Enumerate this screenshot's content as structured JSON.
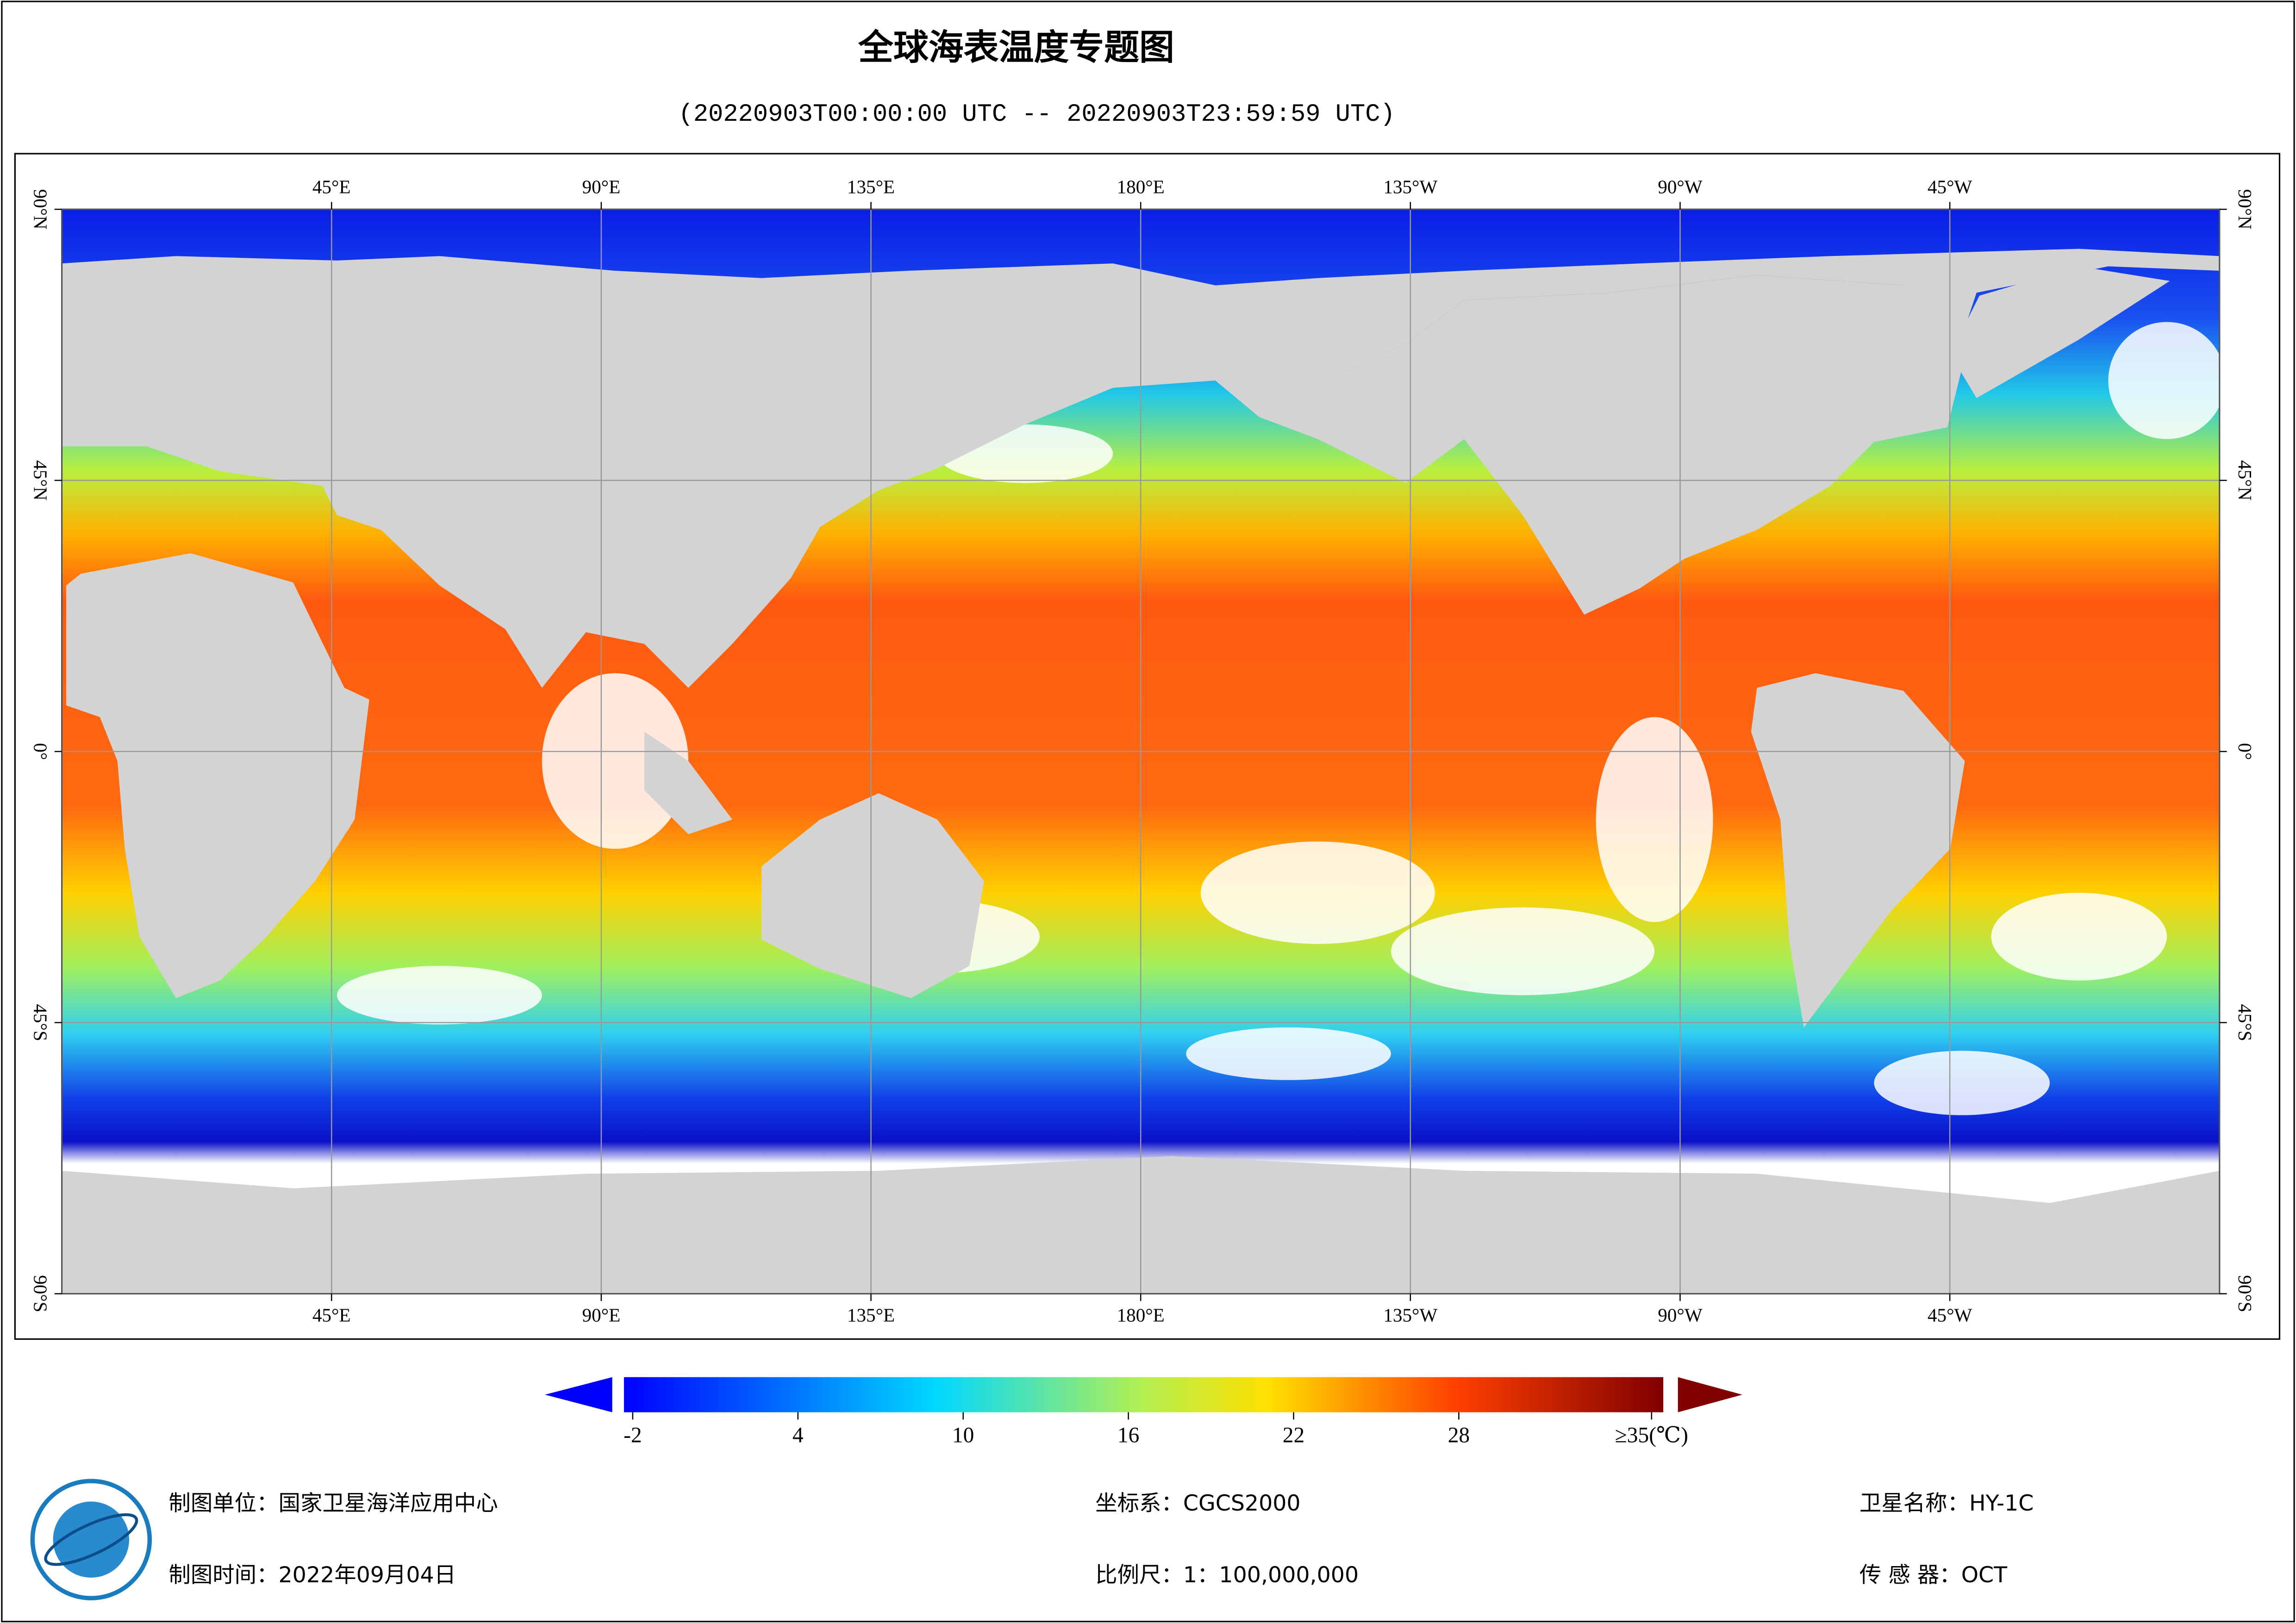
{
  "header": {
    "title": "全球海表温度专题图",
    "subtitle": "(20220903T00:00:00 UTC -- 20220903T23:59:59 UTC)"
  },
  "map": {
    "longitudes": [
      {
        "value": 45,
        "label": "45°E"
      },
      {
        "value": 90,
        "label": "90°E"
      },
      {
        "value": 135,
        "label": "135°E"
      },
      {
        "value": 180,
        "label": "180°E"
      },
      {
        "value": -135,
        "label": "135°W"
      },
      {
        "value": -90,
        "label": "90°W"
      },
      {
        "value": -45,
        "label": "45°W"
      }
    ],
    "latitudes": [
      {
        "value": 90,
        "label": "90°N"
      },
      {
        "value": 45,
        "label": "45°N"
      },
      {
        "value": 0,
        "label": "0°"
      },
      {
        "value": -45,
        "label": "45°S"
      },
      {
        "value": -90,
        "label": "90°S"
      }
    ]
  },
  "colorbar": {
    "ticks": [
      -2,
      4,
      10,
      16,
      22,
      28,
      {
        "value": 35,
        "label": "≥35(℃)"
      }
    ]
  },
  "footer": {
    "unit": "制图单位：国家卫星海洋应用中心",
    "date": "制图时间：2022年09月04日",
    "crs": "坐标系：CGCS2000",
    "scale": "比例尺：1：100,000,000",
    "satellite": "卫星名称：HY-1C",
    "sensor": "传 感 器：OCT"
  }
}
